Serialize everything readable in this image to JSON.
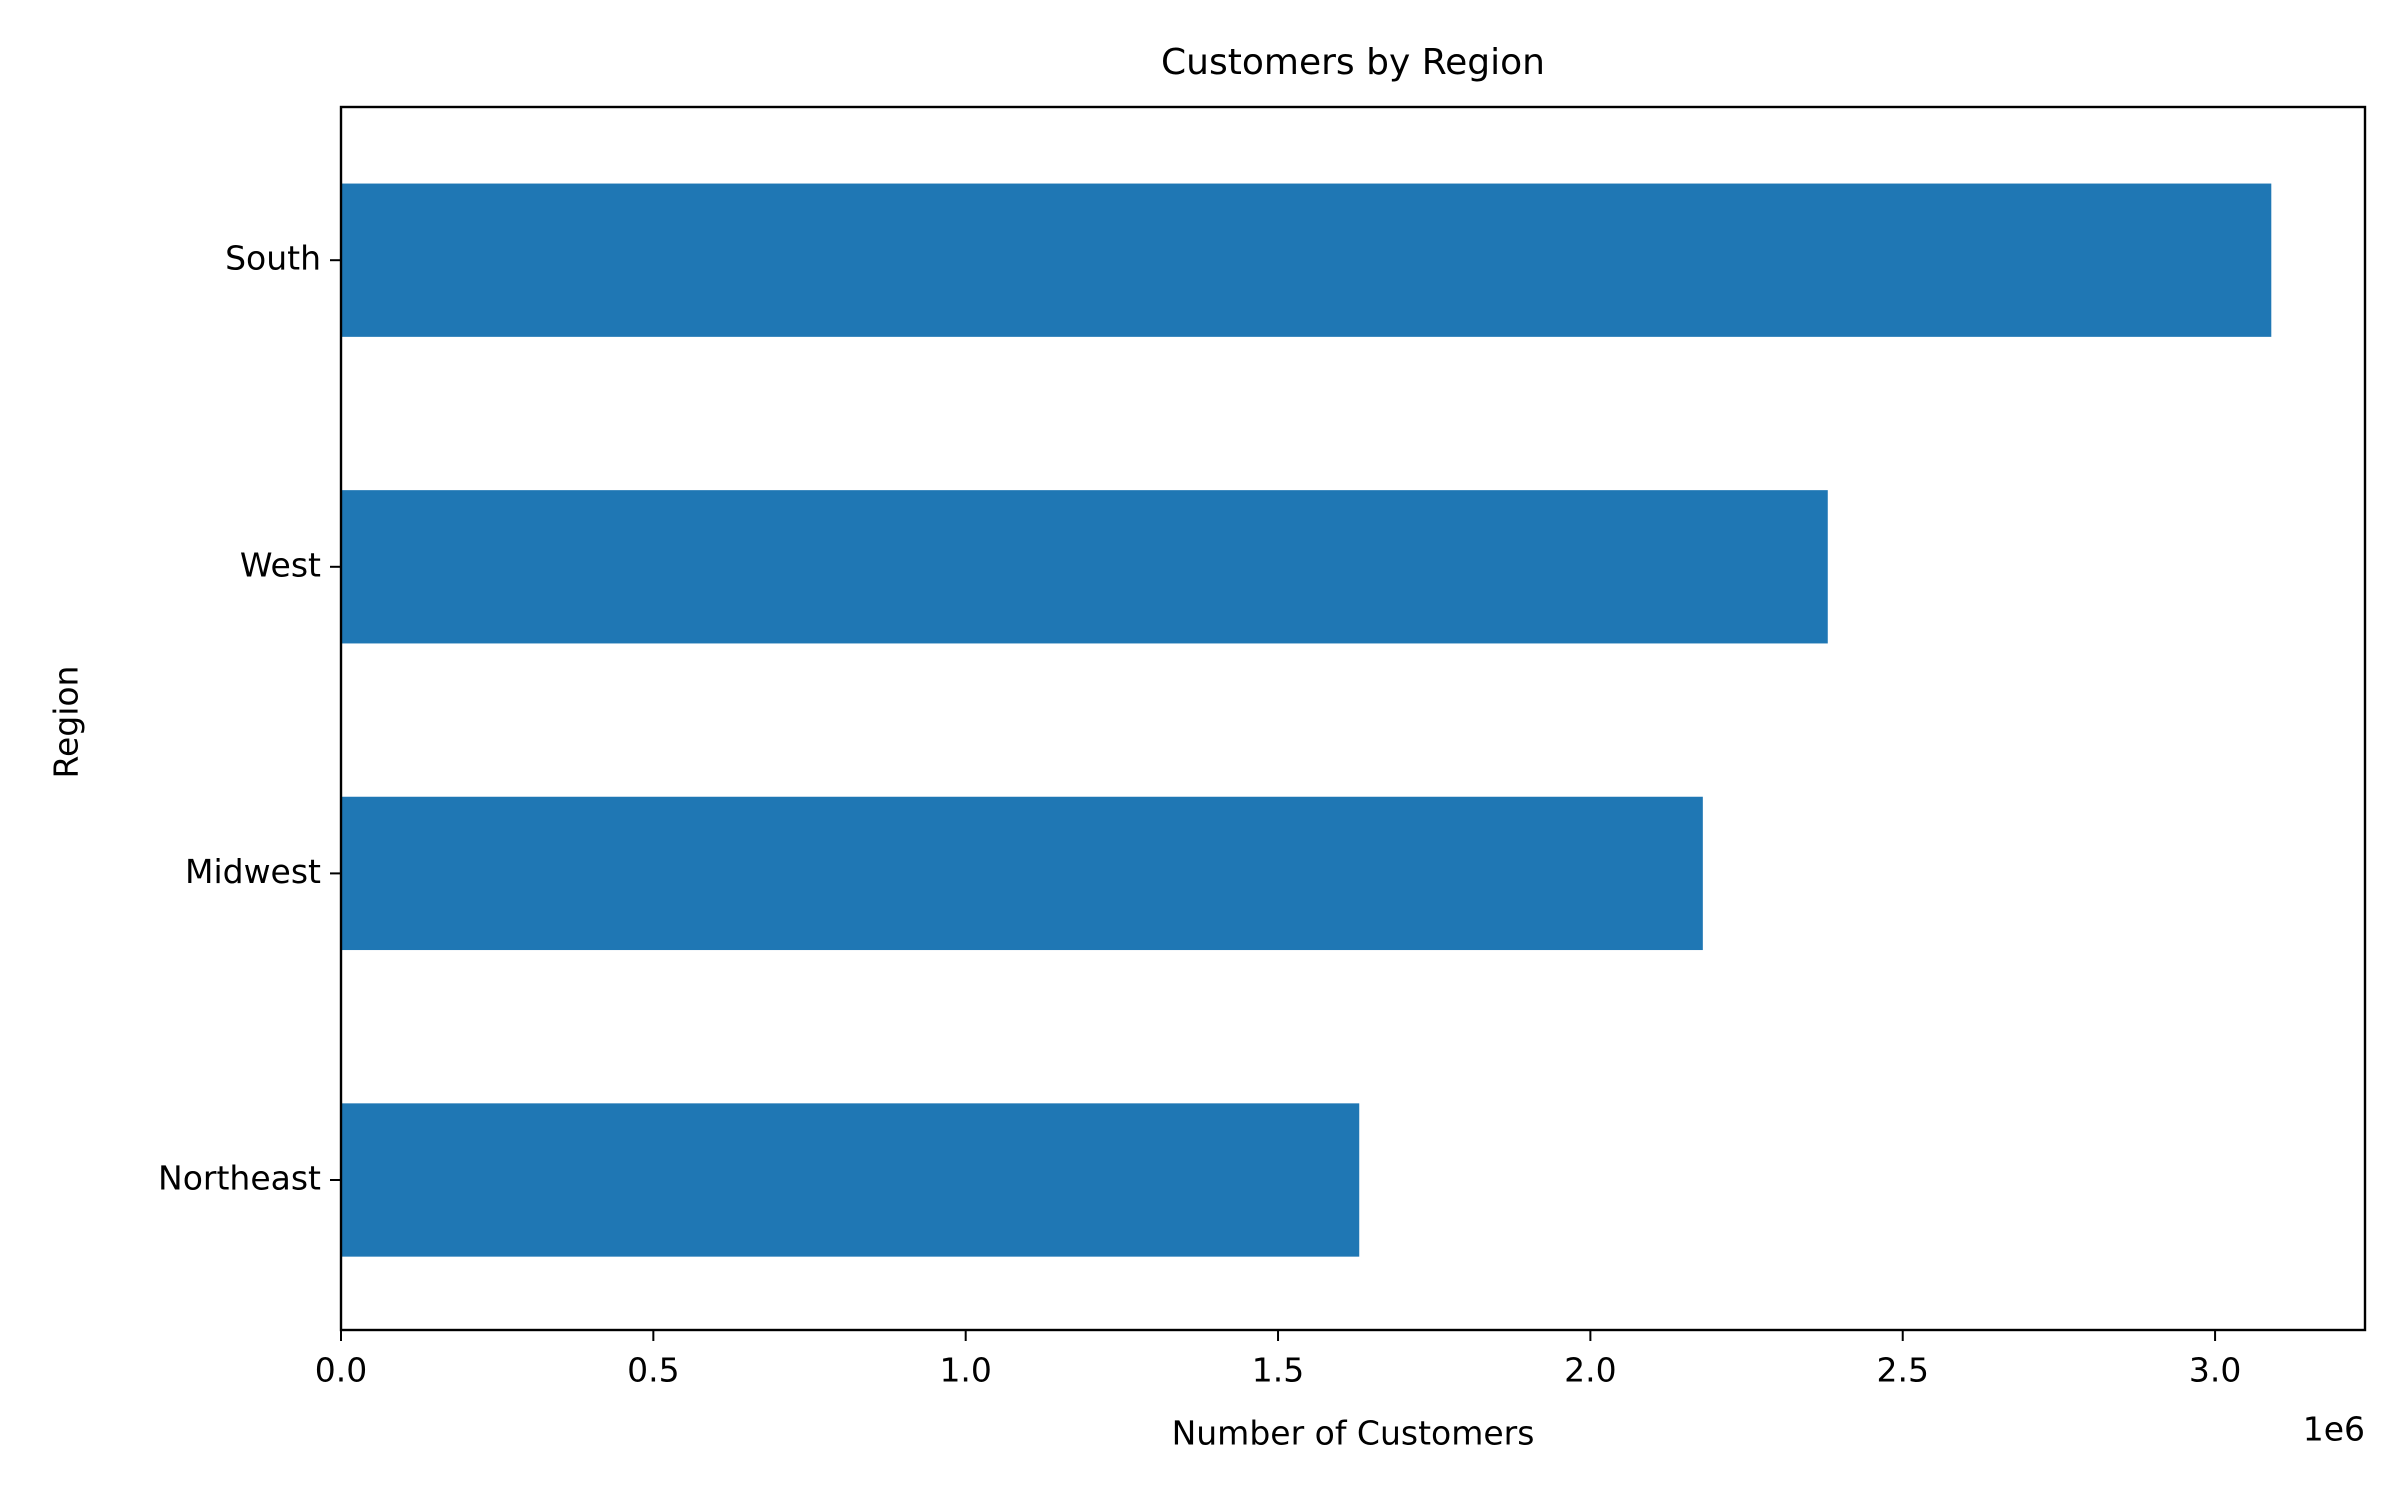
{
  "chart_data": {
    "type": "bar",
    "orientation": "horizontal",
    "title": "Customers by Region",
    "xlabel": "Number of Customers",
    "ylabel": "Region",
    "x_offset_label": "1e6",
    "categories": [
      "Northeast",
      "Midwest",
      "West",
      "South"
    ],
    "values": [
      1.63,
      2.18,
      2.38,
      3.09
    ],
    "value_scale": "1e6",
    "xlim": [
      0,
      3.24
    ],
    "xticks": [
      0.0,
      0.5,
      1.0,
      1.5,
      2.0,
      2.5,
      3.0
    ],
    "xtick_labels": [
      "0.0",
      "0.5",
      "1.0",
      "1.5",
      "2.0",
      "2.5",
      "3.0"
    ],
    "grid": false,
    "legend": "none",
    "bar_color": "#1f77b4"
  }
}
